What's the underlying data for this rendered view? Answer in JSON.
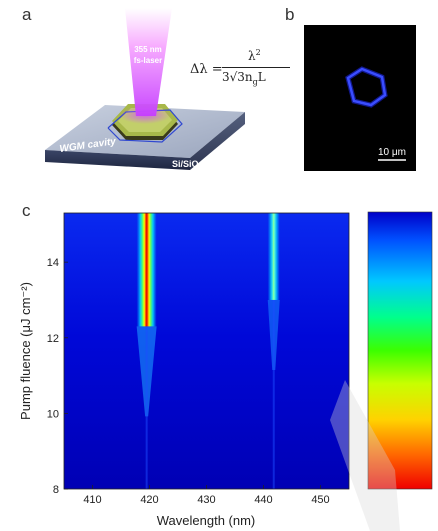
{
  "panels": {
    "a": {
      "label": "a",
      "laser_line1": "355 nm",
      "laser_line2": "fs-laser",
      "cavity_label": "WGM cavity",
      "substrate_label": "Si/SiO",
      "substrate_sub": "2",
      "formula": {
        "lhs": "Δλ =",
        "numerator": "λ",
        "numerator_sup": "2",
        "denominator": "3√3n",
        "denominator_sub": "g",
        "denominator_tail": "L"
      }
    },
    "b": {
      "label": "b",
      "scalebar": "10 μm"
    },
    "c": {
      "label": "c"
    }
  },
  "chart_data": {
    "type": "heatmap",
    "xlabel": "Wavelength (nm)",
    "ylabel": "Pump fluence (μJ cm⁻²)",
    "xlim": [
      405,
      455
    ],
    "ylim": [
      8,
      15.3
    ],
    "x_ticks": [
      410,
      420,
      430,
      440,
      450
    ],
    "y_ticks": [
      8,
      10,
      12,
      14
    ],
    "peaks": [
      {
        "wavelength": 419.5,
        "threshold": 12.3
      },
      {
        "wavelength": 441.8,
        "threshold": 13.0
      }
    ],
    "colormap": [
      "#0000c8",
      "#0050ff",
      "#00c8ff",
      "#00ff8c",
      "#3cff00",
      "#c8ff00",
      "#ffd200",
      "#ff6400",
      "#f00000"
    ],
    "colorbar": "top=blue (low), bottom=red (high)"
  }
}
